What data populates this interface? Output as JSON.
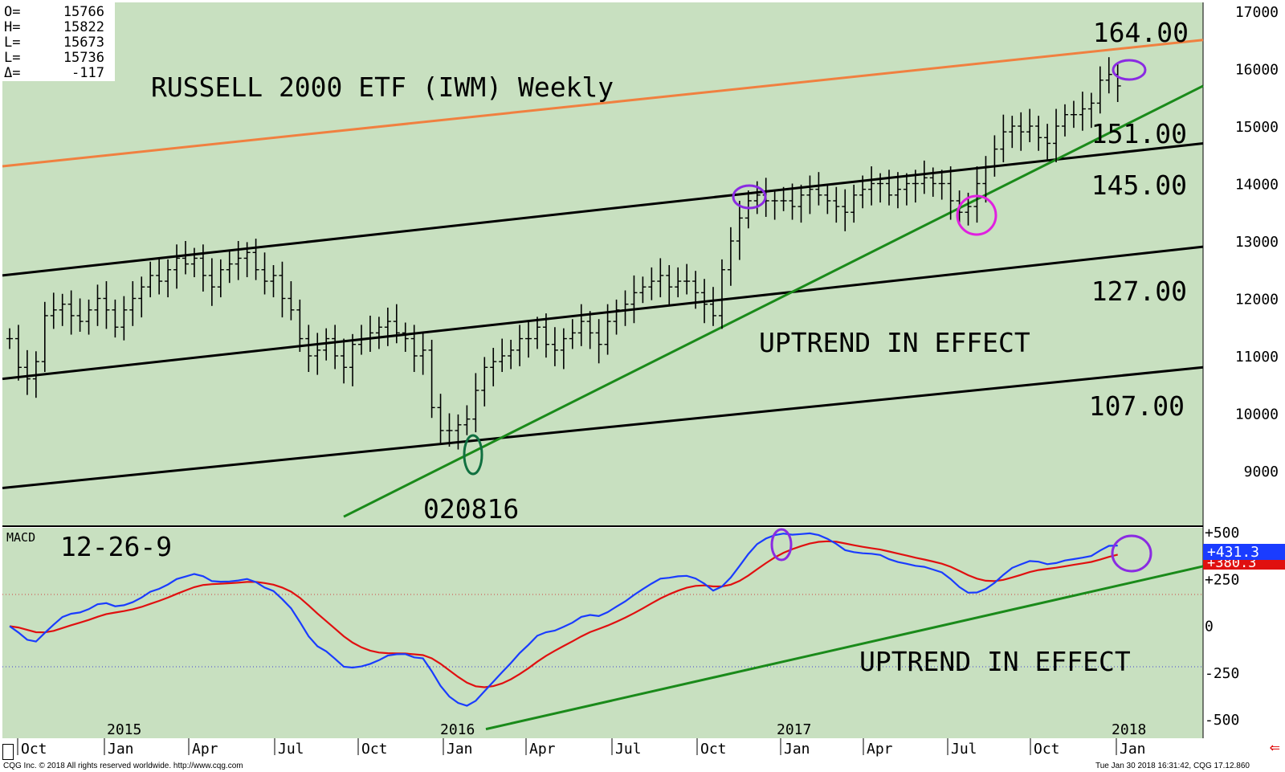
{
  "ohlc_box": {
    "rows": [
      {
        "label": "O=",
        "value": "15766"
      },
      {
        "label": "H=",
        "value": "15822"
      },
      {
        "label": "L=",
        "value": "15673"
      },
      {
        "label": "L=",
        "value": "15736"
      },
      {
        "label": "Δ=",
        "value": "-117"
      }
    ]
  },
  "price_axis_labels": [
    "17000",
    "16000",
    "15000",
    "14000",
    "13000",
    "12000",
    "11000",
    "10000",
    "9000"
  ],
  "macd_axis_labels": [
    "+500",
    "+250",
    "0",
    "-250",
    "-500"
  ],
  "macd_value_tags": {
    "macd": "+431.3",
    "signal": "+380.3"
  },
  "year_labels": [
    "2015",
    "2016",
    "2017",
    "2018"
  ],
  "month_labels": [
    "Oct",
    "Jan",
    "Apr",
    "Jul",
    "Oct",
    "Jan",
    "Apr",
    "Jul",
    "Oct",
    "Jan",
    "Apr",
    "Jul",
    "Oct",
    "Jan"
  ],
  "footer": {
    "left": "CQG Inc. © 2018 All rights reserved worldwide. http://www.cqg.com",
    "right": "Tue Jan 30 2018 16:31:42, CQG 17.12.860"
  },
  "colors": {
    "panel_bg": "#c8e0c0",
    "channel_upper": "#f08040",
    "trendline": "#1a8a1a",
    "macd_line": "#1a3cff",
    "signal_line": "#e01010",
    "circle_purple": "#8a2be2",
    "circle_magenta": "#e020e0",
    "circle_green": "#107040"
  },
  "chart_data": {
    "type": "ohlc",
    "title": "RUSSELL 2000 ETF (IWM) Weekly",
    "price_range": [
      8200,
      17200
    ],
    "channel_labels": [
      "164.00",
      "151.00",
      "145.00",
      "127.00",
      "107.00"
    ],
    "annotations": {
      "low_date": "020816",
      "uptrend_price": "UPTREND IN EFFECT",
      "uptrend_macd": "UPTREND IN EFFECT"
    },
    "macd": {
      "label": "MACD",
      "params": "12-26-9",
      "range": [
        -550,
        560
      ],
      "last_macd": 431.3,
      "last_signal": 380.3
    },
    "weekly_closes": [
      11300,
      10800,
      10600,
      10900,
      11700,
      11800,
      11900,
      11700,
      11600,
      11800,
      12000,
      11800,
      11500,
      11800,
      12000,
      12200,
      12400,
      12300,
      12500,
      12700,
      12600,
      12700,
      12400,
      12200,
      12500,
      12600,
      12700,
      12800,
      12500,
      12300,
      12400,
      12000,
      11800,
      11300,
      11000,
      11100,
      11300,
      11000,
      10800,
      11200,
      11300,
      11400,
      11500,
      11600,
      11400,
      11300,
      11000,
      11100,
      10100,
      9700,
      9700,
      9800,
      9900,
      10400,
      10800,
      10900,
      11000,
      11100,
      11300,
      11300,
      11500,
      11200,
      11100,
      11300,
      11400,
      11600,
      11400,
      11200,
      11600,
      11800,
      11900,
      12100,
      12200,
      12300,
      12400,
      12200,
      12300,
      12300,
      12100,
      11900,
      11700,
      12500,
      13000,
      13400,
      13700,
      13800,
      13700,
      13700,
      13700,
      13600,
      13800,
      13900,
      13800,
      13700,
      13600,
      13500,
      13800,
      13900,
      14000,
      14000,
      13800,
      13900,
      14000,
      14000,
      14100,
      14000,
      14000,
      13700,
      13500,
      13600,
      14000,
      14300,
      14600,
      14900,
      15000,
      14900,
      15000,
      14800,
      14700,
      15000,
      15200,
      15200,
      15300,
      15400,
      15800,
      15900,
      15700
    ]
  }
}
